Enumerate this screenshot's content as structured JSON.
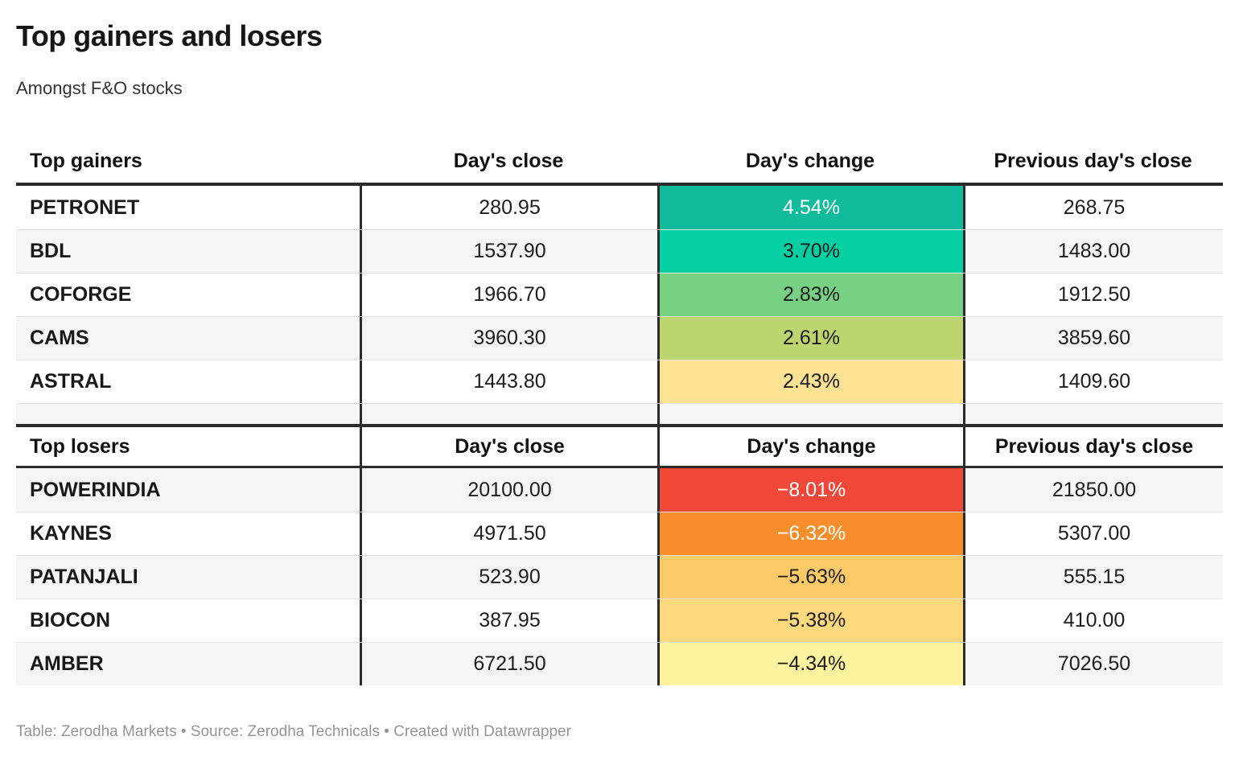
{
  "title": "Top gainers and losers",
  "subtitle": "Amongst F&O stocks",
  "footer": "Table: Zerodha Markets • Source: Zerodha Technicals • Created with Datawrapper",
  "colors": {
    "divider_dark": "#2b2b2b",
    "row_stripe": "#f5f5f5",
    "row_separator": "#e2e2e2",
    "footer_text": "#959595"
  },
  "gainers": {
    "headers": {
      "name": "Top gainers",
      "close": "Day's close",
      "change": "Day's change",
      "prev": "Previous day's close"
    },
    "rows": [
      {
        "name": "PETRONET",
        "close": "280.95",
        "change": "4.54%",
        "prev": "268.75",
        "change_bg": "#0fbb9b",
        "change_fg": "#ffffff"
      },
      {
        "name": "BDL",
        "close": "1537.90",
        "change": "3.70%",
        "prev": "1483.00",
        "change_bg": "#05d0a4",
        "change_fg": "#1d1d1d"
      },
      {
        "name": "COFORGE",
        "close": "1966.70",
        "change": "2.83%",
        "prev": "1912.50",
        "change_bg": "#77d183",
        "change_fg": "#1d1d1d"
      },
      {
        "name": "CAMS",
        "close": "3960.30",
        "change": "2.61%",
        "prev": "3859.60",
        "change_bg": "#bdd56e",
        "change_fg": "#1d1d1d"
      },
      {
        "name": "ASTRAL",
        "close": "1443.80",
        "change": "2.43%",
        "prev": "1409.60",
        "change_bg": "#fde294",
        "change_fg": "#1d1d1d"
      }
    ]
  },
  "losers": {
    "headers": {
      "name": "Top losers",
      "close": "Day's close",
      "change": "Day's change",
      "prev": "Previous day's close"
    },
    "rows": [
      {
        "name": "POWERINDIA",
        "close": "20100.00",
        "change": "−8.01%",
        "prev": "21850.00",
        "change_bg": "#ef4738",
        "change_fg": "#ffffff"
      },
      {
        "name": "KAYNES",
        "close": "4971.50",
        "change": "−6.32%",
        "prev": "5307.00",
        "change_bg": "#f88e2b",
        "change_fg": "#ffffff"
      },
      {
        "name": "PATANJALI",
        "close": "523.90",
        "change": "−5.63%",
        "prev": "555.15",
        "change_bg": "#fcca67",
        "change_fg": "#1d1d1d"
      },
      {
        "name": "BIOCON",
        "close": "387.95",
        "change": "−5.38%",
        "prev": "410.00",
        "change_bg": "#fdd87d",
        "change_fg": "#1d1d1d"
      },
      {
        "name": "AMBER",
        "close": "6721.50",
        "change": "−4.34%",
        "prev": "7026.50",
        "change_bg": "#fdf39e",
        "change_fg": "#1d1d1d"
      }
    ]
  },
  "chart_data": [
    {
      "type": "table",
      "title": "Top gainers",
      "columns": [
        "Top gainers",
        "Day's close",
        "Day's change",
        "Previous day's close"
      ],
      "rows": [
        [
          "PETRONET",
          280.95,
          "4.54%",
          268.75
        ],
        [
          "BDL",
          1537.9,
          "3.70%",
          1483.0
        ],
        [
          "COFORGE",
          1966.7,
          "2.83%",
          1912.5
        ],
        [
          "CAMS",
          3960.3,
          "2.61%",
          3859.6
        ],
        [
          "ASTRAL",
          1443.8,
          "2.43%",
          1409.6
        ]
      ]
    },
    {
      "type": "table",
      "title": "Top losers",
      "columns": [
        "Top losers",
        "Day's close",
        "Day's change",
        "Previous day's close"
      ],
      "rows": [
        [
          "POWERINDIA",
          20100.0,
          "-8.01%",
          21850.0
        ],
        [
          "KAYNES",
          4971.5,
          "-6.32%",
          5307.0
        ],
        [
          "PATANJALI",
          523.9,
          "-5.63%",
          555.15
        ],
        [
          "BIOCON",
          387.95,
          "-5.38%",
          410.0
        ],
        [
          "AMBER",
          6721.5,
          "-4.34%",
          7026.5
        ]
      ]
    }
  ]
}
